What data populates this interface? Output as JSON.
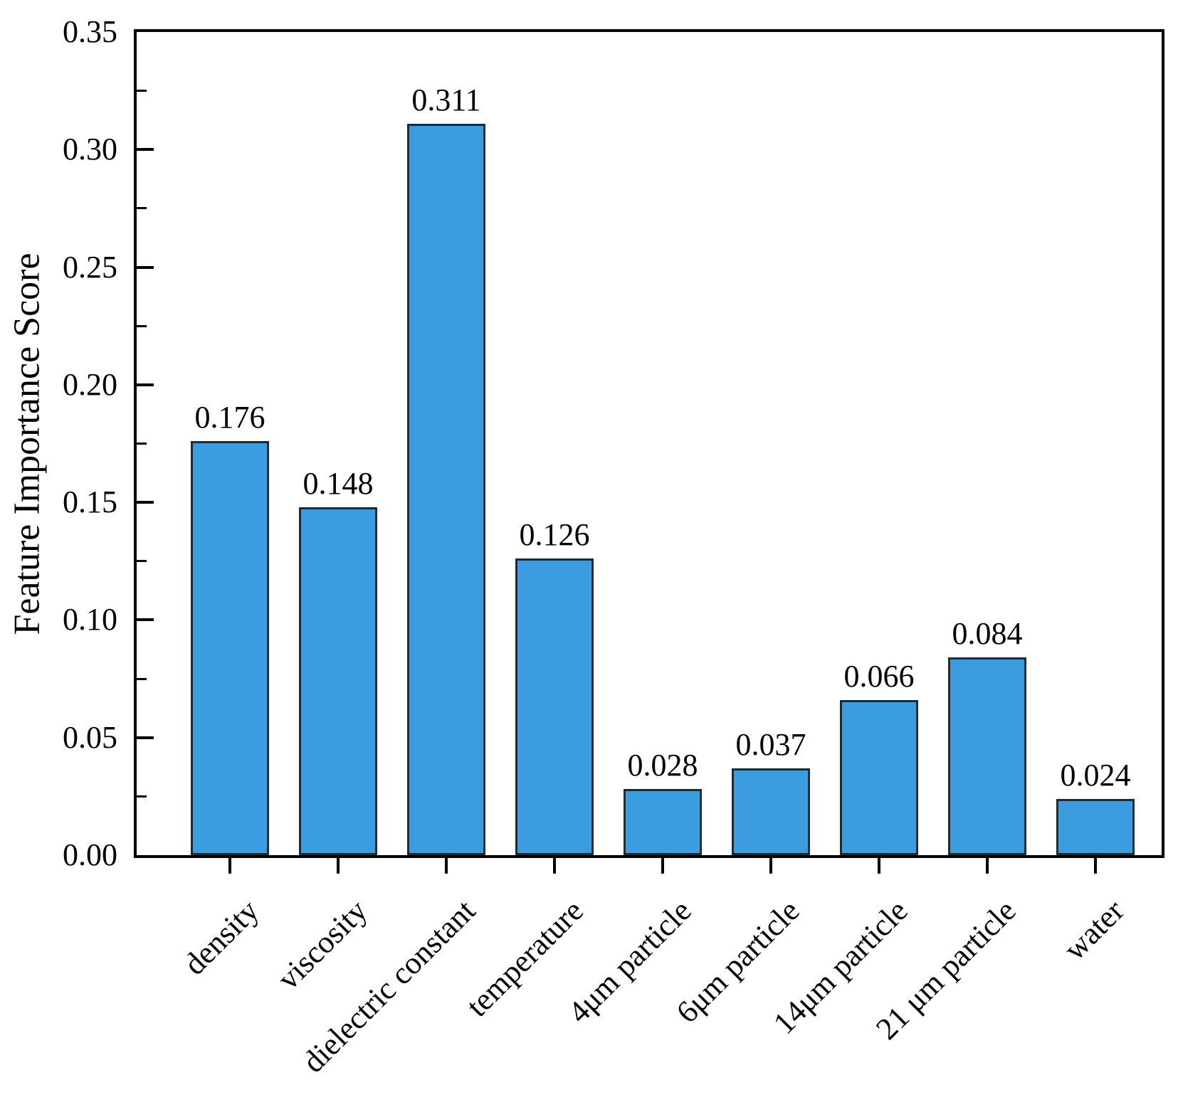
{
  "chart_data": {
    "type": "bar",
    "title": "",
    "xlabel": "",
    "ylabel": "Feature Importance Score",
    "categories": [
      "density",
      "viscosity",
      "dielectric constant",
      "temperature",
      "4μm particle",
      "6μm particle",
      "14μm particle",
      "21 μm particle",
      "water"
    ],
    "values": [
      0.176,
      0.148,
      0.311,
      0.126,
      0.028,
      0.037,
      0.066,
      0.084,
      0.024
    ],
    "value_labels": [
      "0.176",
      "0.148",
      "0.311",
      "0.126",
      "0.028",
      "0.037",
      "0.066",
      "0.084",
      "0.024"
    ],
    "ylim": [
      0,
      0.35
    ],
    "y_ticks": [
      "0.00",
      "0.05",
      "0.10",
      "0.15",
      "0.20",
      "0.25",
      "0.30",
      "0.35"
    ],
    "y_minor_step": 0.025,
    "grid": false,
    "legend": null,
    "bar_fill_color": "#3B9DDE",
    "bar_edge_color": "#1e2a30",
    "axis_color": "#000000",
    "tick_label_rotation_deg": 45
  }
}
